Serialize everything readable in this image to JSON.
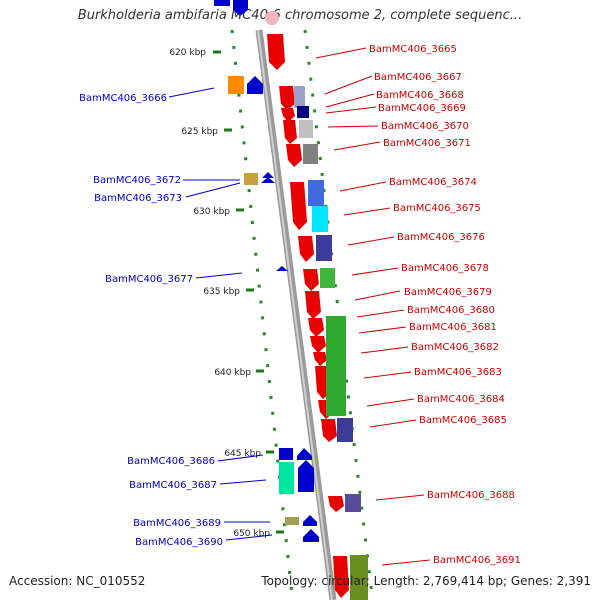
{
  "title": "Burkholderia ambifaria MC40-6 chromosome 2, complete sequenc...",
  "accession": "Accession: NC_010552",
  "topology": "Topology: circular; Length: 2,769,414 bp; Genes: 2,391",
  "ticks": [
    "620 kbp",
    "625 kbp",
    "630 kbp",
    "635 kbp",
    "640 kbp",
    "645 kbp",
    "650 kbp"
  ],
  "genes_left": [
    {
      "name": "BamMC406_3666",
      "color": "#0000cc"
    },
    {
      "name": "BamMC406_3672",
      "color": "#0000cc"
    },
    {
      "name": "BamMC406_3673",
      "color": "#0000cc"
    },
    {
      "name": "BamMC406_3677",
      "color": "#0000cc"
    },
    {
      "name": "BamMC406_3686",
      "color": "#0000cc"
    },
    {
      "name": "BamMC406_3687",
      "color": "#0000cc"
    },
    {
      "name": "BamMC406_3689",
      "color": "#0000cc"
    },
    {
      "name": "BamMC406_3690",
      "color": "#0000cc"
    }
  ],
  "genes_right": [
    {
      "name": "BamMC406_3665",
      "color": "#cc0000"
    },
    {
      "name": "BamMC406_3667",
      "color": "#cc0000"
    },
    {
      "name": "BamMC406_3668",
      "color": "#cc0000"
    },
    {
      "name": "BamMC406_3669",
      "color": "#cc0000"
    },
    {
      "name": "BamMC406_3670",
      "color": "#cc0000"
    },
    {
      "name": "BamMC406_3671",
      "color": "#cc0000"
    },
    {
      "name": "BamMC406_3674",
      "color": "#cc0000"
    },
    {
      "name": "BamMC406_3675",
      "color": "#cc0000"
    },
    {
      "name": "BamMC406_3676",
      "color": "#cc0000"
    },
    {
      "name": "BamMC406_3678",
      "color": "#cc0000"
    },
    {
      "name": "BamMC406_3679",
      "color": "#cc0000"
    },
    {
      "name": "BamMC406_3680",
      "color": "#cc0000"
    },
    {
      "name": "BamMC406_3681",
      "color": "#cc0000"
    },
    {
      "name": "BamMC406_3682",
      "color": "#cc0000"
    },
    {
      "name": "BamMC406_3683",
      "color": "#cc0000"
    },
    {
      "name": "BamMC406_3684",
      "color": "#cc0000"
    },
    {
      "name": "BamMC406_3685",
      "color": "#cc0000"
    },
    {
      "name": "BamMC406_3688",
      "color": "#cc0000"
    },
    {
      "name": "BamMC406_3691",
      "color": "#cc0000"
    }
  ]
}
